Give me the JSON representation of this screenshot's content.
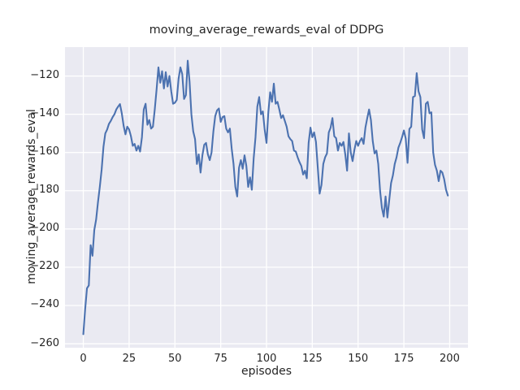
{
  "chart_data": {
    "type": "line",
    "title": "moving_average_rewards_eval of DDPG",
    "xlabel": "episodes",
    "ylabel": "moving_average_rewards_eval",
    "series_name": "moving_average_rewards_eval",
    "grid": true,
    "legend": null,
    "xlim": [
      -10,
      210
    ],
    "ylim": [
      -262.1,
      -104.9
    ],
    "xticks": [
      0,
      25,
      50,
      75,
      100,
      125,
      150,
      175,
      200
    ],
    "yticks": [
      -260,
      -240,
      -220,
      -200,
      -180,
      -160,
      -140,
      -120
    ],
    "colors": {
      "line": "#4c72b0",
      "axes_bg": "#eaeaf2",
      "grid": "#ffffff",
      "text": "#262626",
      "figure_bg": "#ffffff"
    },
    "x": [
      0,
      1,
      2,
      3,
      4,
      5,
      6,
      7,
      8,
      9,
      10,
      11,
      12,
      13,
      14,
      15,
      16,
      17,
      18,
      19,
      20,
      21,
      22,
      23,
      24,
      25,
      26,
      27,
      28,
      29,
      30,
      31,
      32,
      33,
      34,
      35,
      36,
      37,
      38,
      39,
      40,
      41,
      42,
      43,
      44,
      45,
      46,
      47,
      48,
      49,
      50,
      51,
      52,
      53,
      54,
      55,
      56,
      57,
      58,
      59,
      60,
      61,
      62,
      63,
      64,
      65,
      66,
      67,
      68,
      69,
      70,
      71,
      72,
      73,
      74,
      75,
      76,
      77,
      78,
      79,
      80,
      81,
      82,
      83,
      84,
      85,
      86,
      87,
      88,
      89,
      90,
      91,
      92,
      93,
      94,
      95,
      96,
      97,
      98,
      99,
      100,
      101,
      102,
      103,
      104,
      105,
      106,
      107,
      108,
      109,
      110,
      111,
      112,
      113,
      114,
      115,
      116,
      117,
      118,
      119,
      120,
      121,
      122,
      123,
      124,
      125,
      126,
      127,
      128,
      129,
      130,
      131,
      132,
      133,
      134,
      135,
      136,
      137,
      138,
      139,
      140,
      141,
      142,
      143,
      144,
      145,
      146,
      147,
      148,
      149,
      150,
      151,
      152,
      153,
      154,
      155,
      156,
      157,
      158,
      159,
      160,
      161,
      162,
      163,
      164,
      165,
      166,
      167,
      168,
      169,
      170,
      171,
      172,
      173,
      174,
      175,
      176,
      177,
      178,
      179,
      180,
      181,
      182,
      183,
      184,
      185,
      186,
      187,
      188,
      189,
      190,
      191,
      192,
      193,
      194,
      195,
      196,
      197,
      198,
      199
    ],
    "values": [
      -255,
      -242,
      -231,
      -229.5,
      -208.5,
      -214,
      -200.5,
      -195,
      -186,
      -178,
      -169,
      -157,
      -150,
      -148,
      -145,
      -143.5,
      -141.5,
      -140,
      -137.5,
      -136,
      -134.7,
      -139.5,
      -146,
      -150.5,
      -146.5,
      -148,
      -151.5,
      -156.5,
      -155.5,
      -159,
      -156.5,
      -159.5,
      -152,
      -137.5,
      -134.5,
      -145.5,
      -143,
      -147.5,
      -146.5,
      -137.5,
      -127,
      -115.5,
      -123.5,
      -117.5,
      -126.5,
      -118,
      -125.5,
      -120,
      -128,
      -134.5,
      -134,
      -132.5,
      -121.5,
      -115.5,
      -119,
      -132,
      -130,
      -112,
      -123,
      -140,
      -149,
      -153,
      -166,
      -161,
      -170.5,
      -161.5,
      -156,
      -155,
      -161,
      -164,
      -160,
      -149,
      -141,
      -138,
      -137,
      -144,
      -141.5,
      -141,
      -147.5,
      -149.5,
      -147.5,
      -158,
      -166,
      -178,
      -183,
      -168,
      -164,
      -168.5,
      -161.5,
      -167,
      -178,
      -173,
      -179.5,
      -163,
      -152,
      -136,
      -131,
      -140,
      -138.5,
      -148,
      -155,
      -139,
      -128.5,
      -133.5,
      -124,
      -134.5,
      -133.5,
      -137.5,
      -142,
      -140.5,
      -143.5,
      -146.5,
      -151.5,
      -153,
      -154,
      -159,
      -159.5,
      -162.5,
      -165,
      -167,
      -171.5,
      -169.5,
      -173.5,
      -155,
      -147,
      -152,
      -149.5,
      -154.5,
      -168,
      -181.5,
      -177,
      -166,
      -162.5,
      -160.5,
      -149.5,
      -147,
      -142,
      -151.5,
      -152.5,
      -159,
      -155,
      -156.5,
      -154.5,
      -161,
      -169.5,
      -150,
      -160,
      -164.5,
      -158.5,
      -154,
      -156.5,
      -154,
      -152.5,
      -155.5,
      -147,
      -142,
      -137.5,
      -143,
      -154,
      -160.5,
      -159,
      -166,
      -180,
      -189,
      -193.5,
      -183,
      -194,
      -185,
      -176,
      -172,
      -166,
      -162.5,
      -157.5,
      -155,
      -152,
      -148.5,
      -152.7,
      -165.4,
      -147.7,
      -146.5,
      -131,
      -130.5,
      -118.5,
      -128,
      -131,
      -148,
      -152.5,
      -134.5,
      -133.5,
      -139.5,
      -139,
      -160,
      -166.5,
      -169.5,
      -175,
      -169.5,
      -170.5,
      -174,
      -179.5,
      -182.5
    ]
  }
}
